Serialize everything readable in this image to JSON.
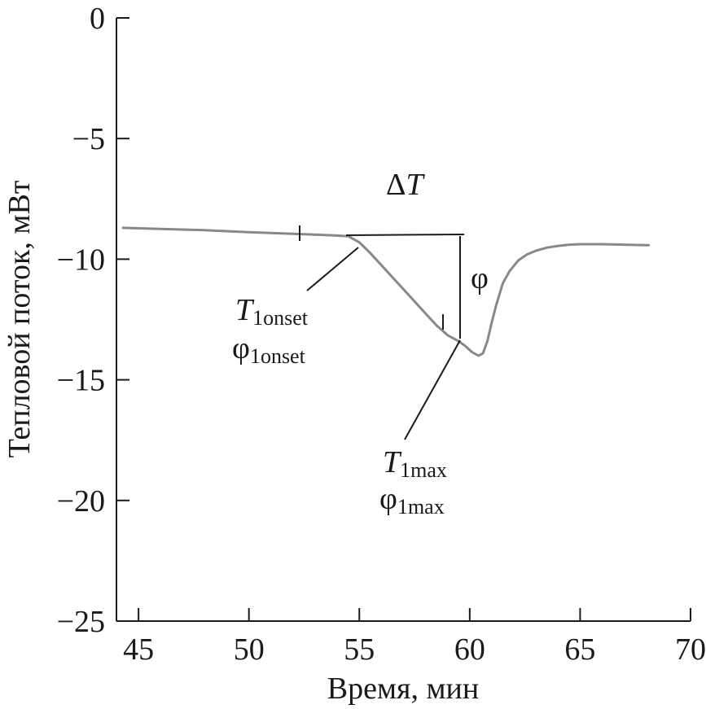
{
  "chart_data": {
    "type": "line",
    "title": "",
    "xlabel": "Время, мин",
    "ylabel": "Тепловой поток, мВт",
    "xlim": [
      44,
      70
    ],
    "ylim": [
      -25,
      0
    ],
    "xticks": [
      45,
      50,
      55,
      60,
      65,
      70
    ],
    "yticks": [
      0,
      -5,
      -10,
      -15,
      -20,
      -25
    ],
    "grid": false,
    "series": [
      {
        "color": "#888888",
        "x": [
          44.3,
          46,
          48,
          50,
          52,
          53,
          54,
          54.5,
          55,
          55.5,
          56,
          56.5,
          57,
          57.5,
          58,
          58.5,
          59,
          59.5,
          59.8,
          60.1,
          60.4,
          60.6,
          60.8,
          61.0,
          61.2,
          61.5,
          61.8,
          62.2,
          62.6,
          63.0,
          63.5,
          64,
          64.5,
          65,
          66,
          67,
          68.1
        ],
        "y": [
          -8.7,
          -8.75,
          -8.8,
          -8.88,
          -8.95,
          -8.98,
          -9.02,
          -9.05,
          -9.3,
          -9.75,
          -10.25,
          -10.75,
          -11.25,
          -11.75,
          -12.25,
          -12.75,
          -13.15,
          -13.4,
          -13.6,
          -13.85,
          -14.0,
          -13.9,
          -13.4,
          -12.6,
          -11.9,
          -11.0,
          -10.5,
          -10.05,
          -9.8,
          -9.65,
          -9.52,
          -9.45,
          -9.4,
          -9.38,
          -9.38,
          -9.4,
          -9.42
        ]
      }
    ],
    "annotations": {
      "delta_t_symbol": "Δ",
      "delta_t_var": "T",
      "phi": "φ",
      "onset_t_var": "T",
      "onset_t_sub": "1onset",
      "onset_phi": "φ",
      "onset_phi_sub": "1onset",
      "max_t_var": "T",
      "max_t_sub": "1max",
      "max_phi": "φ",
      "max_phi_sub": "1max"
    }
  }
}
